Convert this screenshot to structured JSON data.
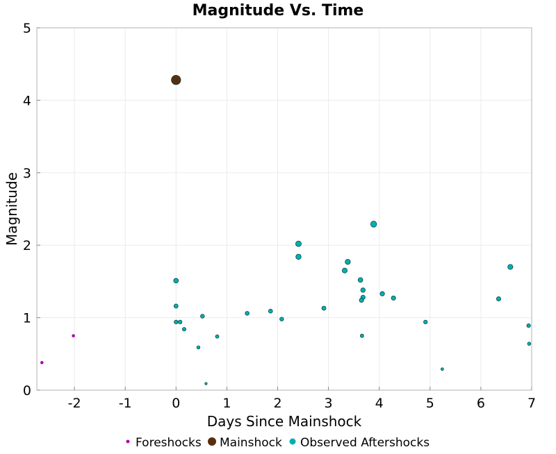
{
  "chart_data": {
    "type": "scatter",
    "title": "Magnitude Vs. Time",
    "xlabel": "Days Since Mainshock",
    "ylabel": "Magnitude",
    "xlim": [
      -2.74,
      7
    ],
    "ylim": [
      0,
      5
    ],
    "xticks": [
      -2,
      -1,
      0,
      1,
      2,
      3,
      4,
      5,
      6,
      7
    ],
    "yticks": [
      0,
      1,
      2,
      3,
      4,
      5
    ],
    "grid": true,
    "legend_position": "bottom",
    "series": [
      {
        "name": "Foreshocks",
        "color": "#b000b0",
        "points": [
          [
            -2.64,
            0.38
          ],
          [
            -2.02,
            0.75
          ]
        ]
      },
      {
        "name": "Mainshock",
        "color": "#5a2e0a",
        "points": [
          [
            0,
            4.28
          ]
        ]
      },
      {
        "name": "Observed Aftershocks",
        "color": "#00b0b0",
        "points": [
          [
            0,
            1.51
          ],
          [
            0,
            1.16
          ],
          [
            0,
            0.94
          ],
          [
            0.08,
            0.94
          ],
          [
            0.16,
            0.84
          ],
          [
            0.44,
            0.59
          ],
          [
            0.52,
            1.02
          ],
          [
            0.59,
            0.09
          ],
          [
            0.81,
            0.74
          ],
          [
            1.4,
            1.06
          ],
          [
            1.86,
            1.09
          ],
          [
            2.08,
            0.98
          ],
          [
            2.41,
            2.02
          ],
          [
            2.41,
            1.84
          ],
          [
            2.91,
            1.13
          ],
          [
            3.32,
            1.65
          ],
          [
            3.38,
            1.77
          ],
          [
            3.63,
            1.52
          ],
          [
            3.68,
            1.38
          ],
          [
            3.68,
            1.28
          ],
          [
            3.65,
            1.24
          ],
          [
            3.66,
            0.75
          ],
          [
            3.89,
            2.29
          ],
          [
            4.06,
            1.33
          ],
          [
            4.28,
            1.27
          ],
          [
            4.91,
            0.94
          ],
          [
            5.24,
            0.29
          ],
          [
            6.35,
            1.26
          ],
          [
            6.58,
            1.7
          ],
          [
            6.94,
            0.89
          ],
          [
            6.95,
            0.64
          ]
        ]
      }
    ]
  }
}
